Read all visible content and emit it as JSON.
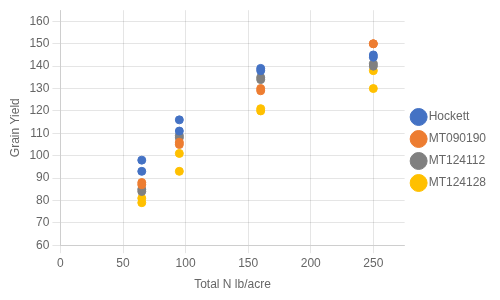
{
  "chart_data": {
    "type": "scatter",
    "xlabel": "Total N lb/acre",
    "ylabel": "Grain Yield",
    "x": [
      65,
      65,
      95,
      95,
      160,
      160,
      250,
      250
    ],
    "series": [
      {
        "name": "Hockett",
        "color": "#4472C4",
        "values": [
          98,
          93,
          116,
          111,
          139,
          138,
          145,
          144
        ]
      },
      {
        "name": "MT090190",
        "color": "#ED7D31",
        "values": [
          88,
          87,
          106,
          105,
          130,
          129,
          150,
          150
        ]
      },
      {
        "name": "MT124112",
        "color": "#808080",
        "values": [
          85,
          84,
          109,
          108,
          135,
          134,
          141,
          140
        ]
      },
      {
        "name": "MT124128",
        "color": "#FFC000",
        "values": [
          81,
          79,
          101,
          93,
          121,
          120,
          138,
          130
        ]
      }
    ],
    "xlim": [
      0,
      275
    ],
    "ylim": [
      60,
      165
    ],
    "xticks": [
      0,
      50,
      100,
      150,
      200,
      250
    ],
    "yticks": [
      60,
      70,
      80,
      90,
      100,
      110,
      120,
      130,
      140,
      150,
      160
    ],
    "grid": true,
    "legend": "right"
  }
}
